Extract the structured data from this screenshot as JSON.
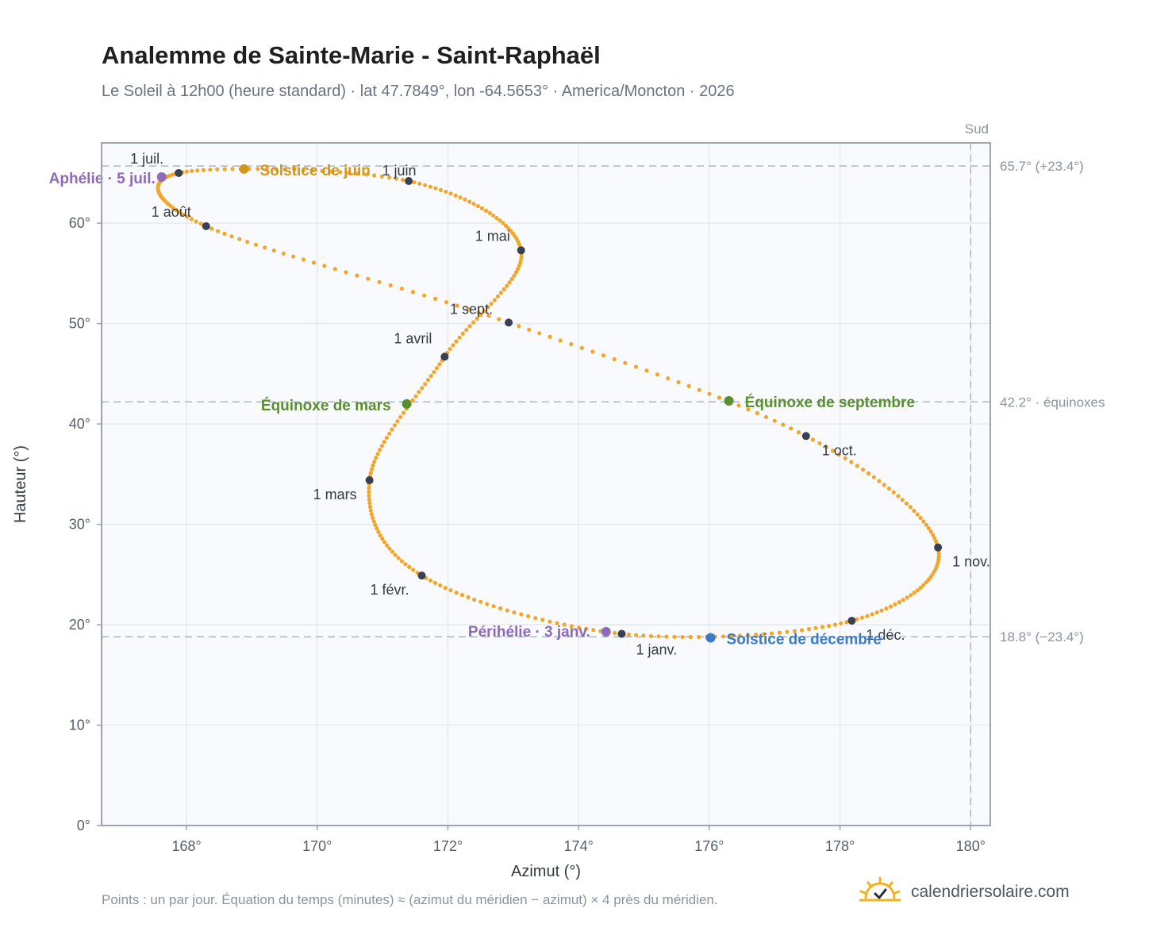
{
  "header": {
    "title": "Analemme de Sainte-Marie - Saint-Raphaël",
    "subtitle": "Le Soleil à 12h00 (heure standard) · lat 47.7849°, lon -64.5653° · America/Moncton · 2026"
  },
  "footer": {
    "note": "Points : un par jour. Équation du temps (minutes) ≈ (azimut du méridien − azimut) × 4 près du méridien.",
    "brand": "calendriersolaire.com",
    "brand_icon": "sun-logo-icon"
  },
  "colors": {
    "curve": "#f2a72b",
    "month_marker": "#374151",
    "solstice_june": "#d4961a",
    "solstice_december": "#3a7bc8",
    "equinox": "#5a8f2e",
    "apsis": "#8e6ab8",
    "reference_line": "#a9b7c3",
    "plot_background": "#f8fafd",
    "grid": "#e6eaef"
  },
  "chart_data": {
    "type": "scatter",
    "title": "Analemme de Sainte-Marie - Saint-Raphaël",
    "xlabel": "Azimut (°)",
    "ylabel": "Hauteur (°)",
    "xlim": [
      166.7,
      180.3
    ],
    "ylim": [
      0,
      68
    ],
    "grid": true,
    "x_ticks": [
      168,
      170,
      172,
      174,
      176,
      178,
      180
    ],
    "x_tick_labels": [
      "168°",
      "170°",
      "172°",
      "174°",
      "176°",
      "178°",
      "180°"
    ],
    "y_ticks": [
      0,
      10,
      20,
      30,
      40,
      50,
      60
    ],
    "y_tick_labels": [
      "0°",
      "10°",
      "20°",
      "30°",
      "40°",
      "50°",
      "60°"
    ],
    "meridian": {
      "x": 180,
      "label": "Sud"
    },
    "reference_lines": [
      {
        "y": 65.7,
        "label": "65.7° (+23.4°)"
      },
      {
        "y": 42.2,
        "label": "42.2° · équinoxes"
      },
      {
        "y": 18.8,
        "label": "18.8° (−23.4°)"
      }
    ],
    "month_points": [
      {
        "label": "1 janv.",
        "x": 174.66,
        "y": 19.1
      },
      {
        "label": "1 févr.",
        "x": 171.6,
        "y": 24.9
      },
      {
        "label": "1 mars",
        "x": 170.8,
        "y": 34.4
      },
      {
        "label": "1 avril",
        "x": 171.95,
        "y": 46.7
      },
      {
        "label": "1 mai",
        "x": 173.12,
        "y": 57.3
      },
      {
        "label": "1 juin",
        "x": 171.4,
        "y": 64.2
      },
      {
        "label": "1 juil.",
        "x": 167.88,
        "y": 65.0
      },
      {
        "label": "1 août",
        "x": 168.3,
        "y": 59.7
      },
      {
        "label": "1 sept.",
        "x": 172.93,
        "y": 50.1
      },
      {
        "label": "1 oct.",
        "x": 177.48,
        "y": 38.8
      },
      {
        "label": "1 nov.",
        "x": 179.5,
        "y": 27.7
      },
      {
        "label": "1 déc.",
        "x": 178.18,
        "y": 20.4
      }
    ],
    "events": [
      {
        "label": "Solstice de juin",
        "x": 168.88,
        "y": 65.4,
        "kind": "solstice_june"
      },
      {
        "label": "Équinoxe de mars",
        "x": 171.37,
        "y": 42.0,
        "kind": "equinox"
      },
      {
        "label": "Équinoxe de septembre",
        "x": 176.3,
        "y": 42.3,
        "kind": "equinox"
      },
      {
        "label": "Solstice de décembre",
        "x": 176.02,
        "y": 18.7,
        "kind": "solstice_december"
      },
      {
        "label": "Aphélie · 5 juil.",
        "x": 167.62,
        "y": 64.6,
        "kind": "apsis"
      },
      {
        "label": "Périhélie · 3 janv.",
        "x": 174.42,
        "y": 19.3,
        "kind": "apsis"
      }
    ]
  }
}
